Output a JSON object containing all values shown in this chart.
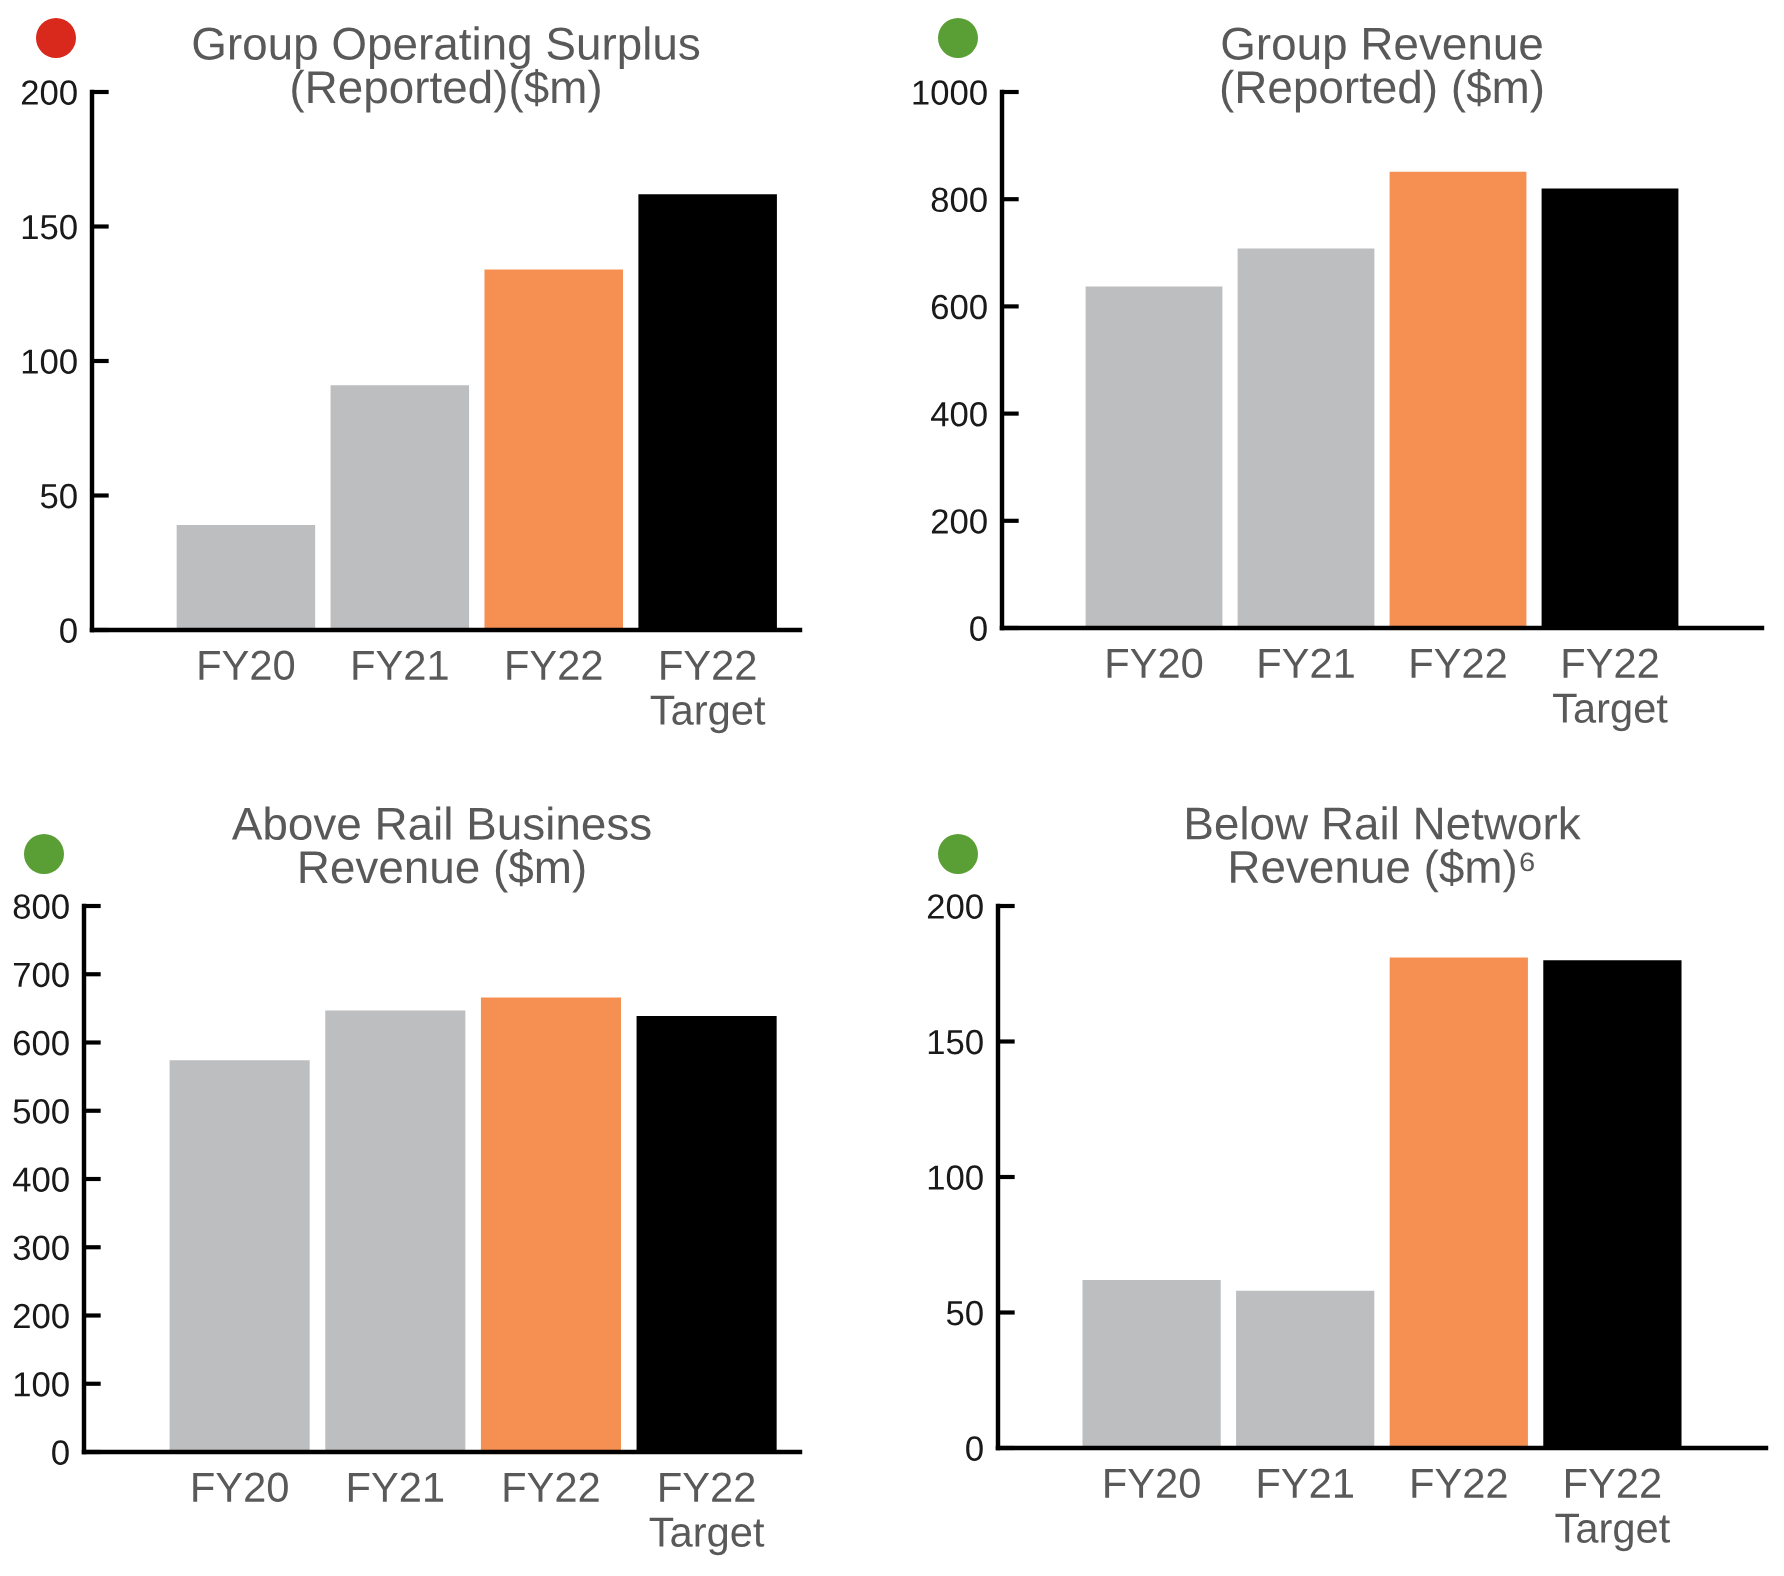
{
  "chart_data": [
    {
      "type": "bar",
      "title": "Group Operating Surplus\n(Reported)($m)",
      "categories": [
        "FY20",
        "FY21",
        "FY22",
        "FY22\nTarget"
      ],
      "values": [
        39,
        91,
        134,
        162
      ],
      "colors": [
        "#bdbec0",
        "#bdbec0",
        "#f58f52",
        "#000000"
      ],
      "ylim": [
        0,
        200
      ],
      "yticks": [
        0,
        50,
        100,
        150,
        200
      ]
    },
    {
      "type": "bar",
      "title": "Group Revenue\n(Reported) ($m)",
      "categories": [
        "FY20",
        "FY21",
        "FY22",
        "FY22\nTarget"
      ],
      "values": [
        637,
        708,
        851,
        820
      ],
      "colors": [
        "#bdbec0",
        "#bdbec0",
        "#f58f52",
        "#000000"
      ],
      "ylim": [
        0,
        1000
      ],
      "yticks": [
        0,
        200,
        400,
        600,
        800,
        1000
      ]
    },
    {
      "type": "bar",
      "title": "Above Rail Business\nRevenue ($m)",
      "categories": [
        "FY20",
        "FY21",
        "FY22",
        "FY22\nTarget"
      ],
      "values": [
        574,
        647,
        666,
        639
      ],
      "colors": [
        "#bdbec0",
        "#bdbec0",
        "#f58f52",
        "#000000"
      ],
      "ylim": [
        0,
        800
      ],
      "yticks": [
        0,
        100,
        200,
        300,
        400,
        500,
        600,
        700,
        800
      ]
    },
    {
      "type": "bar",
      "title": "Below Rail Network\nRevenue ($m)⁶",
      "categories": [
        "FY20",
        "FY21",
        "FY22",
        "FY22\nTarget"
      ],
      "values": [
        62,
        58,
        181,
        180
      ],
      "colors": [
        "#bdbec0",
        "#bdbec0",
        "#f58f52",
        "#000000"
      ],
      "ylim": [
        0,
        200
      ],
      "yticks": [
        0,
        50,
        100,
        150,
        200
      ]
    }
  ]
}
